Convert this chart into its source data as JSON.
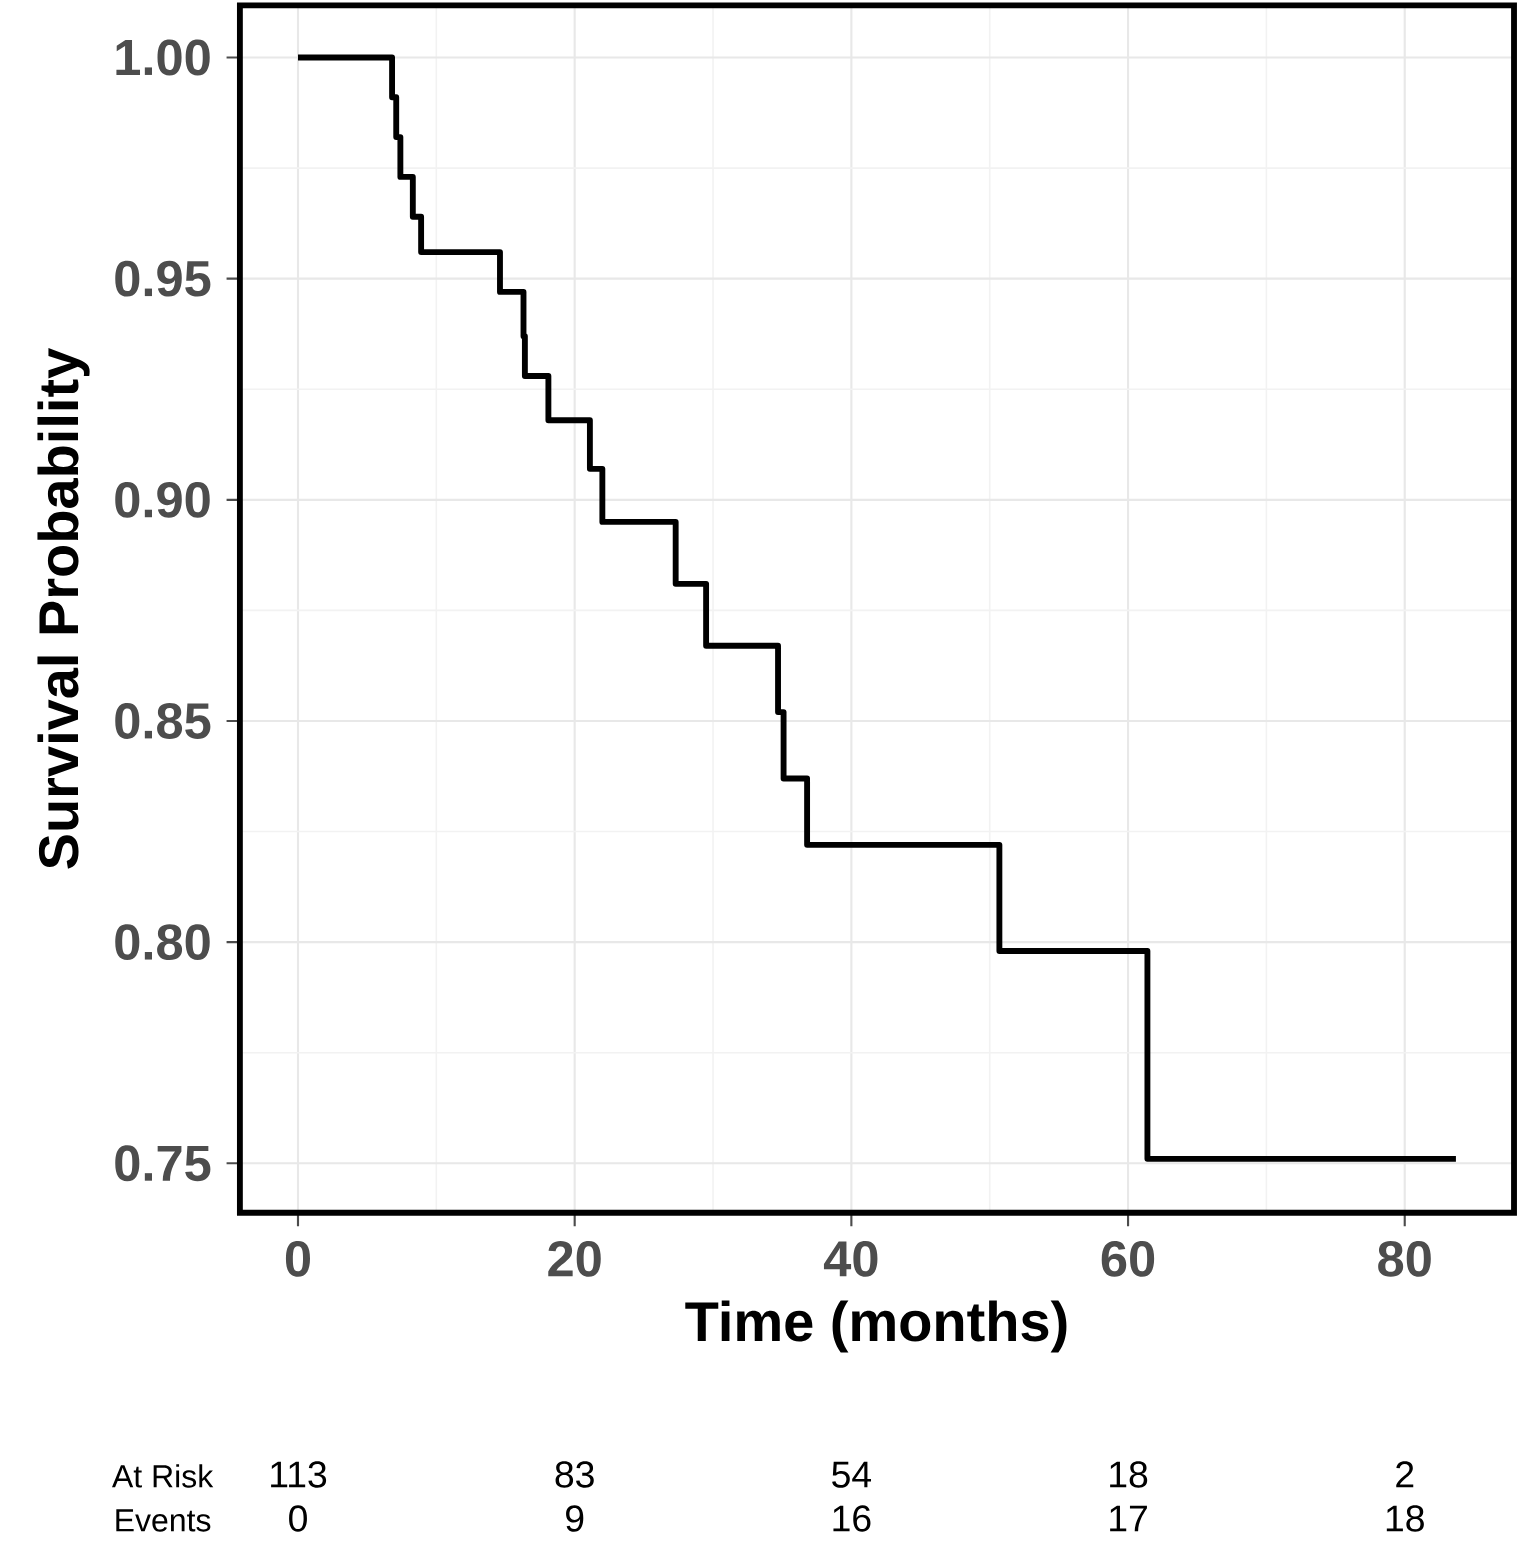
{
  "chart_data": {
    "type": "step",
    "xlabel": "Time (months)",
    "ylabel": "Survival Probability",
    "x": [
      0,
      6.8,
      7.1,
      7.4,
      8.3,
      8.9,
      14.6,
      16.3,
      16.4,
      18.1,
      21.1,
      22.0,
      27.3,
      29.5,
      34.7,
      35.1,
      36.8,
      50.7,
      61.4,
      83.7
    ],
    "values": [
      1.0,
      0.991,
      0.982,
      0.973,
      0.964,
      0.956,
      0.947,
      0.937,
      0.928,
      0.918,
      0.907,
      0.895,
      0.881,
      0.867,
      0.852,
      0.837,
      0.822,
      0.798,
      0.751,
      0.751
    ],
    "color": "#000000",
    "grid": true,
    "xlim": [
      -4.2,
      87.9
    ],
    "ylim": [
      0.7388,
      1.0118
    ],
    "xticks": [
      0,
      20,
      40,
      60,
      80
    ],
    "yticks": [
      {
        "value": 0.75,
        "label": "0.75"
      },
      {
        "value": 0.8,
        "label": "0.80"
      },
      {
        "value": 0.85,
        "label": "0.85"
      },
      {
        "value": 0.9,
        "label": "0.90"
      },
      {
        "value": 0.95,
        "label": "0.95"
      },
      {
        "value": 1.0,
        "label": "1.00"
      }
    ],
    "annotations": [
      "At Risk",
      "113",
      "83",
      "54",
      "18",
      "2",
      "Events",
      "0",
      "9",
      "16",
      "17",
      "18"
    ]
  }
}
